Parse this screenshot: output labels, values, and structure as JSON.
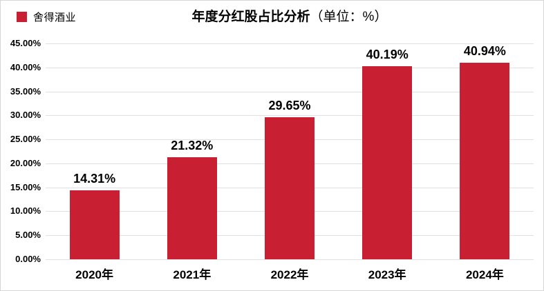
{
  "legend": {
    "label": "舍得酒业",
    "swatch_color": "#c81f33"
  },
  "chart_data": {
    "type": "bar",
    "title": "年度分红股占比分析",
    "title_unit": "（单位：%）",
    "categories": [
      "2020年",
      "2021年",
      "2022年",
      "2023年",
      "2024年"
    ],
    "series": [
      {
        "name": "舍得酒业",
        "values": [
          14.31,
          21.32,
          29.65,
          40.19,
          40.94
        ]
      }
    ],
    "value_labels": [
      "14.31%",
      "21.32%",
      "29.65%",
      "40.19%",
      "40.94%"
    ],
    "ylim": [
      0,
      45
    ],
    "ytick_step": 5,
    "ytick_labels": [
      "0.00%",
      "5.00%",
      "10.00%",
      "15.00%",
      "20.00%",
      "25.00%",
      "30.00%",
      "35.00%",
      "40.00%",
      "45.00%"
    ],
    "grid": "horizontal",
    "legend_position": "top-left",
    "bar_color": "#c81f33"
  },
  "colors": {
    "bar": "#c81f33",
    "grid": "#e0e0e0",
    "frame_border": "#d6d6d6",
    "text": "#000000"
  }
}
